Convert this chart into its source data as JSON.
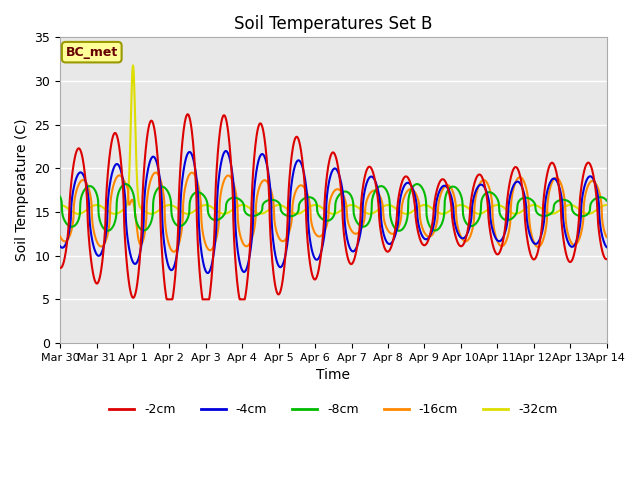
{
  "title": "Soil Temperatures Set B",
  "xlabel": "Time",
  "ylabel": "Soil Temperature (C)",
  "legend_label": "BC_met",
  "ylim": [
    0,
    35
  ],
  "series_colors": {
    "-2cm": "#dd0000",
    "-4cm": "#0000dd",
    "-8cm": "#00bb00",
    "-16cm": "#ff8800",
    "-32cm": "#dddd00"
  },
  "tick_labels": [
    "Mar 30",
    "Mar 31",
    "Apr 1",
    "Apr 2",
    "Apr 3",
    "Apr 4",
    "Apr 5",
    "Apr 6",
    "Apr 7",
    "Apr 8",
    "Apr 9",
    "Apr 10",
    "Apr 11",
    "Apr 12",
    "Apr 13",
    "Apr 14"
  ],
  "tick_positions": [
    0,
    1,
    2,
    3,
    4,
    5,
    6,
    7,
    8,
    9,
    10,
    11,
    12,
    13,
    14,
    15
  ],
  "background_color": "#e8e8e8",
  "grid_color": "#ffffff",
  "annotation_bg": "#ffff99",
  "annotation_border": "#999900",
  "annotation_text_color": "#660000"
}
